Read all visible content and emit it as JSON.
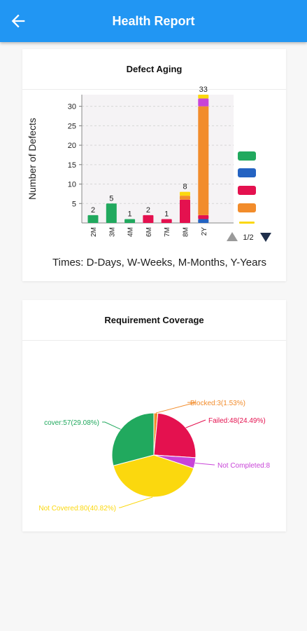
{
  "header": {
    "title": "Health Report",
    "back_icon": "arrow-back-icon",
    "background": "#2196f3"
  },
  "defect_aging": {
    "title": "Defect Aging",
    "caption": "Times: D-Days, W-Weeks, M-Months, Y-Years",
    "pager": "1/2",
    "legend_colors": [
      "#21a95e",
      "#2463c2",
      "#e4114f",
      "#f28c2b",
      "#fbd80e"
    ],
    "chart_data": {
      "type": "bar",
      "ylabel": "Number of Defects",
      "ylim": [
        0,
        33
      ],
      "yticks": [
        5,
        10,
        15,
        20,
        25,
        30
      ],
      "grid": true,
      "categories": [
        "2M",
        "3M",
        "4M",
        "6M",
        "7M",
        "8M",
        "2Y"
      ],
      "totals": [
        2,
        5,
        1,
        2,
        1,
        8,
        33
      ],
      "bars": [
        [
          {
            "color": "#21a95e",
            "value": 2
          }
        ],
        [
          {
            "color": "#21a95e",
            "value": 5
          }
        ],
        [
          {
            "color": "#21a95e",
            "value": 1
          }
        ],
        [
          {
            "color": "#e4114f",
            "value": 2
          }
        ],
        [
          {
            "color": "#e4114f",
            "value": 1
          }
        ],
        [
          {
            "color": "#e4114f",
            "value": 6
          },
          {
            "color": "#f28c2b",
            "value": 1
          },
          {
            "color": "#fbd80e",
            "value": 1
          }
        ],
        [
          {
            "color": "#2463c2",
            "value": 1
          },
          {
            "color": "#e4114f",
            "value": 1
          },
          {
            "color": "#f28c2b",
            "value": 28
          },
          {
            "color": "#c844d8",
            "value": 2
          },
          {
            "color": "#fbd80e",
            "value": 1
          }
        ]
      ]
    }
  },
  "requirement_coverage": {
    "title": "Requirement Coverage",
    "chart_data": {
      "type": "pie",
      "slices": [
        {
          "label": "Blocked:3(1.53%)",
          "value": 3,
          "percent": 1.53,
          "color": "#f28c2b"
        },
        {
          "label": "Failed:48(24.49%)",
          "value": 48,
          "percent": 24.49,
          "color": "#e4114f"
        },
        {
          "label": "Not Completed:8",
          "value": 8,
          "percent": 4.08,
          "color": "#c844d8"
        },
        {
          "label": "Not Covered:80(40.82%)",
          "value": 80,
          "percent": 40.82,
          "color": "#fbd80e"
        },
        {
          "label": "cover:57(29.08%)",
          "value": 57,
          "percent": 29.08,
          "color": "#21a95e"
        }
      ]
    }
  }
}
